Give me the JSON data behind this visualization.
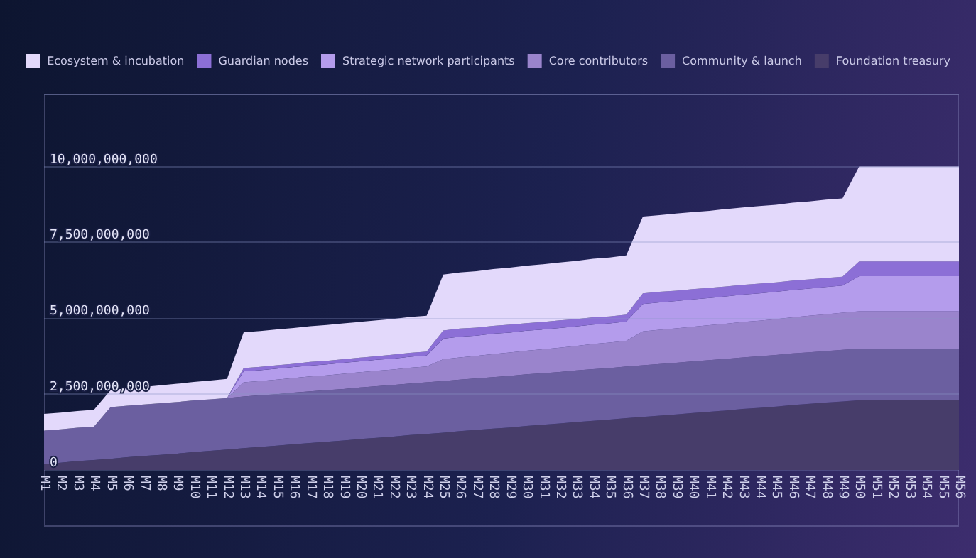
{
  "chart_data": {
    "type": "area",
    "stacked": true,
    "grid": "y",
    "legend": "top",
    "marker": "none",
    "categories": [
      "M1",
      "M2",
      "M3",
      "M4",
      "M5",
      "M6",
      "M7",
      "M8",
      "M9",
      "M10",
      "M11",
      "M12",
      "M13",
      "M14",
      "M15",
      "M16",
      "M17",
      "M18",
      "M19",
      "M20",
      "M21",
      "M22",
      "M23",
      "M24",
      "M25",
      "M26",
      "M27",
      "M28",
      "M29",
      "M30",
      "M31",
      "M32",
      "M33",
      "M34",
      "M35",
      "M36",
      "M37",
      "M38",
      "M39",
      "M40",
      "M41",
      "M42",
      "M43",
      "M44",
      "M45",
      "M46",
      "M47",
      "M48",
      "M49",
      "M50",
      "M51",
      "M52",
      "M53",
      "M54",
      "M55",
      "M56"
    ],
    "ylim": [
      0,
      12400000000
    ],
    "yticks": [
      0,
      {
        "value": 2500000000,
        "label": "2,500,000,000"
      },
      {
        "value": 5000000000,
        "label": "5,000,000,000"
      },
      {
        "value": 7500000000,
        "label": "7,500,000,000"
      },
      {
        "value": 10000000000,
        "label": "10,000,000,000"
      }
    ],
    "series": [
      {
        "name": "Foundation treasury",
        "color": "#473d6a",
        "values": [
          200000000.0,
          240000000.0,
          290000000.0,
          330000000.0,
          370000000.0,
          420000000.0,
          460000000.0,
          500000000.0,
          540000000.0,
          590000000.0,
          630000000.0,
          670000000.0,
          720000000.0,
          760000000.0,
          800000000.0,
          850000000.0,
          890000000.0,
          930000000.0,
          970000000.0,
          1020000000.0,
          1060000000.0,
          1100000000.0,
          1150000000.0,
          1190000000.0,
          1230000000.0,
          1280000000.0,
          1320000000.0,
          1360000000.0,
          1400000000.0,
          1450000000.0,
          1490000000.0,
          1530000000.0,
          1580000000.0,
          1620000000.0,
          1660000000.0,
          1710000000.0,
          1750000000.0,
          1790000000.0,
          1830000000.0,
          1880000000.0,
          1920000000.0,
          1960000000.0,
          2010000000.0,
          2050000000.0,
          2090000000.0,
          2140000000.0,
          2180000000.0,
          2220000000.0,
          2260000000.0,
          2300000000.0,
          2300000000.0,
          2300000000.0,
          2300000000.0,
          2300000000.0,
          2300000000.0,
          2300000000.0
        ]
      },
      {
        "name": "Community & launch",
        "color": "#6b5fa0",
        "values": [
          1100000000.0,
          1100000000.0,
          1100000000.0,
          1100000000.0,
          1700000000.0,
          1700000000.0,
          1700000000.0,
          1700000000.0,
          1700000000.0,
          1700000000.0,
          1700000000.0,
          1700000000.0,
          1700000000.0,
          1700000000.0,
          1700000000.0,
          1700000000.0,
          1700000000.0,
          1700000000.0,
          1700000000.0,
          1700000000.0,
          1700000000.0,
          1700000000.0,
          1700000000.0,
          1700000000.0,
          1700000000.0,
          1700000000.0,
          1700000000.0,
          1700000000.0,
          1700000000.0,
          1700000000.0,
          1700000000.0,
          1700000000.0,
          1700000000.0,
          1700000000.0,
          1700000000.0,
          1700000000.0,
          1700000000.0,
          1700000000.0,
          1700000000.0,
          1700000000.0,
          1700000000.0,
          1700000000.0,
          1700000000.0,
          1700000000.0,
          1700000000.0,
          1700000000.0,
          1700000000.0,
          1700000000.0,
          1700000000.0,
          1700000000.0,
          1700000000.0,
          1700000000.0,
          1700000000.0,
          1700000000.0,
          1700000000.0,
          1700000000.0
        ]
      },
      {
        "name": "Core contributors",
        "color": "#9a84cc",
        "values": [
          0,
          0,
          0,
          0,
          0,
          0,
          0,
          0,
          0,
          0,
          0,
          0,
          470000000.0,
          470000000.0,
          480000000.0,
          480000000.0,
          490000000.0,
          490000000.0,
          500000000.0,
          500000000.0,
          510000000.0,
          510000000.0,
          520000000.0,
          520000000.0,
          720000000.0,
          730000000.0,
          740000000.0,
          760000000.0,
          770000000.0,
          780000000.0,
          790000000.0,
          800000000.0,
          810000000.0,
          830000000.0,
          840000000.0,
          850000000.0,
          1120000000.0,
          1130000000.0,
          1140000000.0,
          1140000000.0,
          1150000000.0,
          1160000000.0,
          1170000000.0,
          1170000000.0,
          1180000000.0,
          1190000000.0,
          1200000000.0,
          1210000000.0,
          1220000000.0,
          1230000000.0,
          1230000000.0,
          1230000000.0,
          1230000000.0,
          1230000000.0,
          1230000000.0,
          1230000000.0
        ]
      },
      {
        "name": "Strategic network participants",
        "color": "#b49cec",
        "values": [
          0,
          0,
          0,
          0,
          0,
          0,
          0,
          0,
          0,
          0,
          0,
          0,
          360000000.0,
          360000000.0,
          360000000.0,
          360000000.0,
          360000000.0,
          360000000.0,
          360000000.0,
          360000000.0,
          360000000.0,
          360000000.0,
          360000000.0,
          360000000.0,
          680000000.0,
          680000000.0,
          670000000.0,
          670000000.0,
          660000000.0,
          660000000.0,
          650000000.0,
          650000000.0,
          640000000.0,
          640000000.0,
          630000000.0,
          630000000.0,
          900000000.0,
          900000000.0,
          900000000.0,
          900000000.0,
          900000000.0,
          900000000.0,
          900000000.0,
          900000000.0,
          900000000.0,
          900000000.0,
          900000000.0,
          900000000.0,
          900000000.0,
          1160000000.0,
          1160000000.0,
          1160000000.0,
          1160000000.0,
          1160000000.0,
          1160000000.0,
          1160000000.0
        ]
      },
      {
        "name": "Guardian nodes",
        "color": "#8c6fd6",
        "values": [
          0,
          0,
          0,
          0,
          0,
          0,
          0,
          0,
          0,
          0,
          0,
          0,
          110000000.0,
          110000000.0,
          110000000.0,
          110000000.0,
          120000000.0,
          120000000.0,
          120000000.0,
          120000000.0,
          120000000.0,
          130000000.0,
          130000000.0,
          130000000.0,
          270000000.0,
          270000000.0,
          260000000.0,
          260000000.0,
          260000000.0,
          250000000.0,
          250000000.0,
          250000000.0,
          240000000.0,
          240000000.0,
          230000000.0,
          230000000.0,
          350000000.0,
          350000000.0,
          340000000.0,
          340000000.0,
          330000000.0,
          330000000.0,
          320000000.0,
          320000000.0,
          310000000.0,
          310000000.0,
          300000000.0,
          300000000.0,
          290000000.0,
          480000000.0,
          480000000.0,
          480000000.0,
          480000000.0,
          480000000.0,
          480000000.0,
          480000000.0
        ]
      },
      {
        "name": "Ecosystem & incubation",
        "color": "#e3d9fb",
        "values": [
          550000000.0,
          550000000.0,
          550000000.0,
          550000000.0,
          560000000.0,
          570000000.0,
          580000000.0,
          590000000.0,
          600000000.0,
          610000000.0,
          620000000.0,
          630000000.0,
          1180000000.0,
          1180000000.0,
          1180000000.0,
          1180000000.0,
          1180000000.0,
          1180000000.0,
          1180000000.0,
          1180000000.0,
          1180000000.0,
          1180000000.0,
          1180000000.0,
          1180000000.0,
          1840000000.0,
          1850000000.0,
          1860000000.0,
          1870000000.0,
          1880000000.0,
          1890000000.0,
          1900000000.0,
          1910000000.0,
          1920000000.0,
          1930000000.0,
          1940000000.0,
          1950000000.0,
          2530000000.0,
          2530000000.0,
          2540000000.0,
          2540000000.0,
          2540000000.0,
          2550000000.0,
          2550000000.0,
          2560000000.0,
          2560000000.0,
          2570000000.0,
          2570000000.0,
          2580000000.0,
          2580000000.0,
          3130000000.0,
          3130000000.0,
          3130000000.0,
          3130000000.0,
          3130000000.0,
          3130000000.0,
          3130000000.0
        ]
      }
    ]
  }
}
